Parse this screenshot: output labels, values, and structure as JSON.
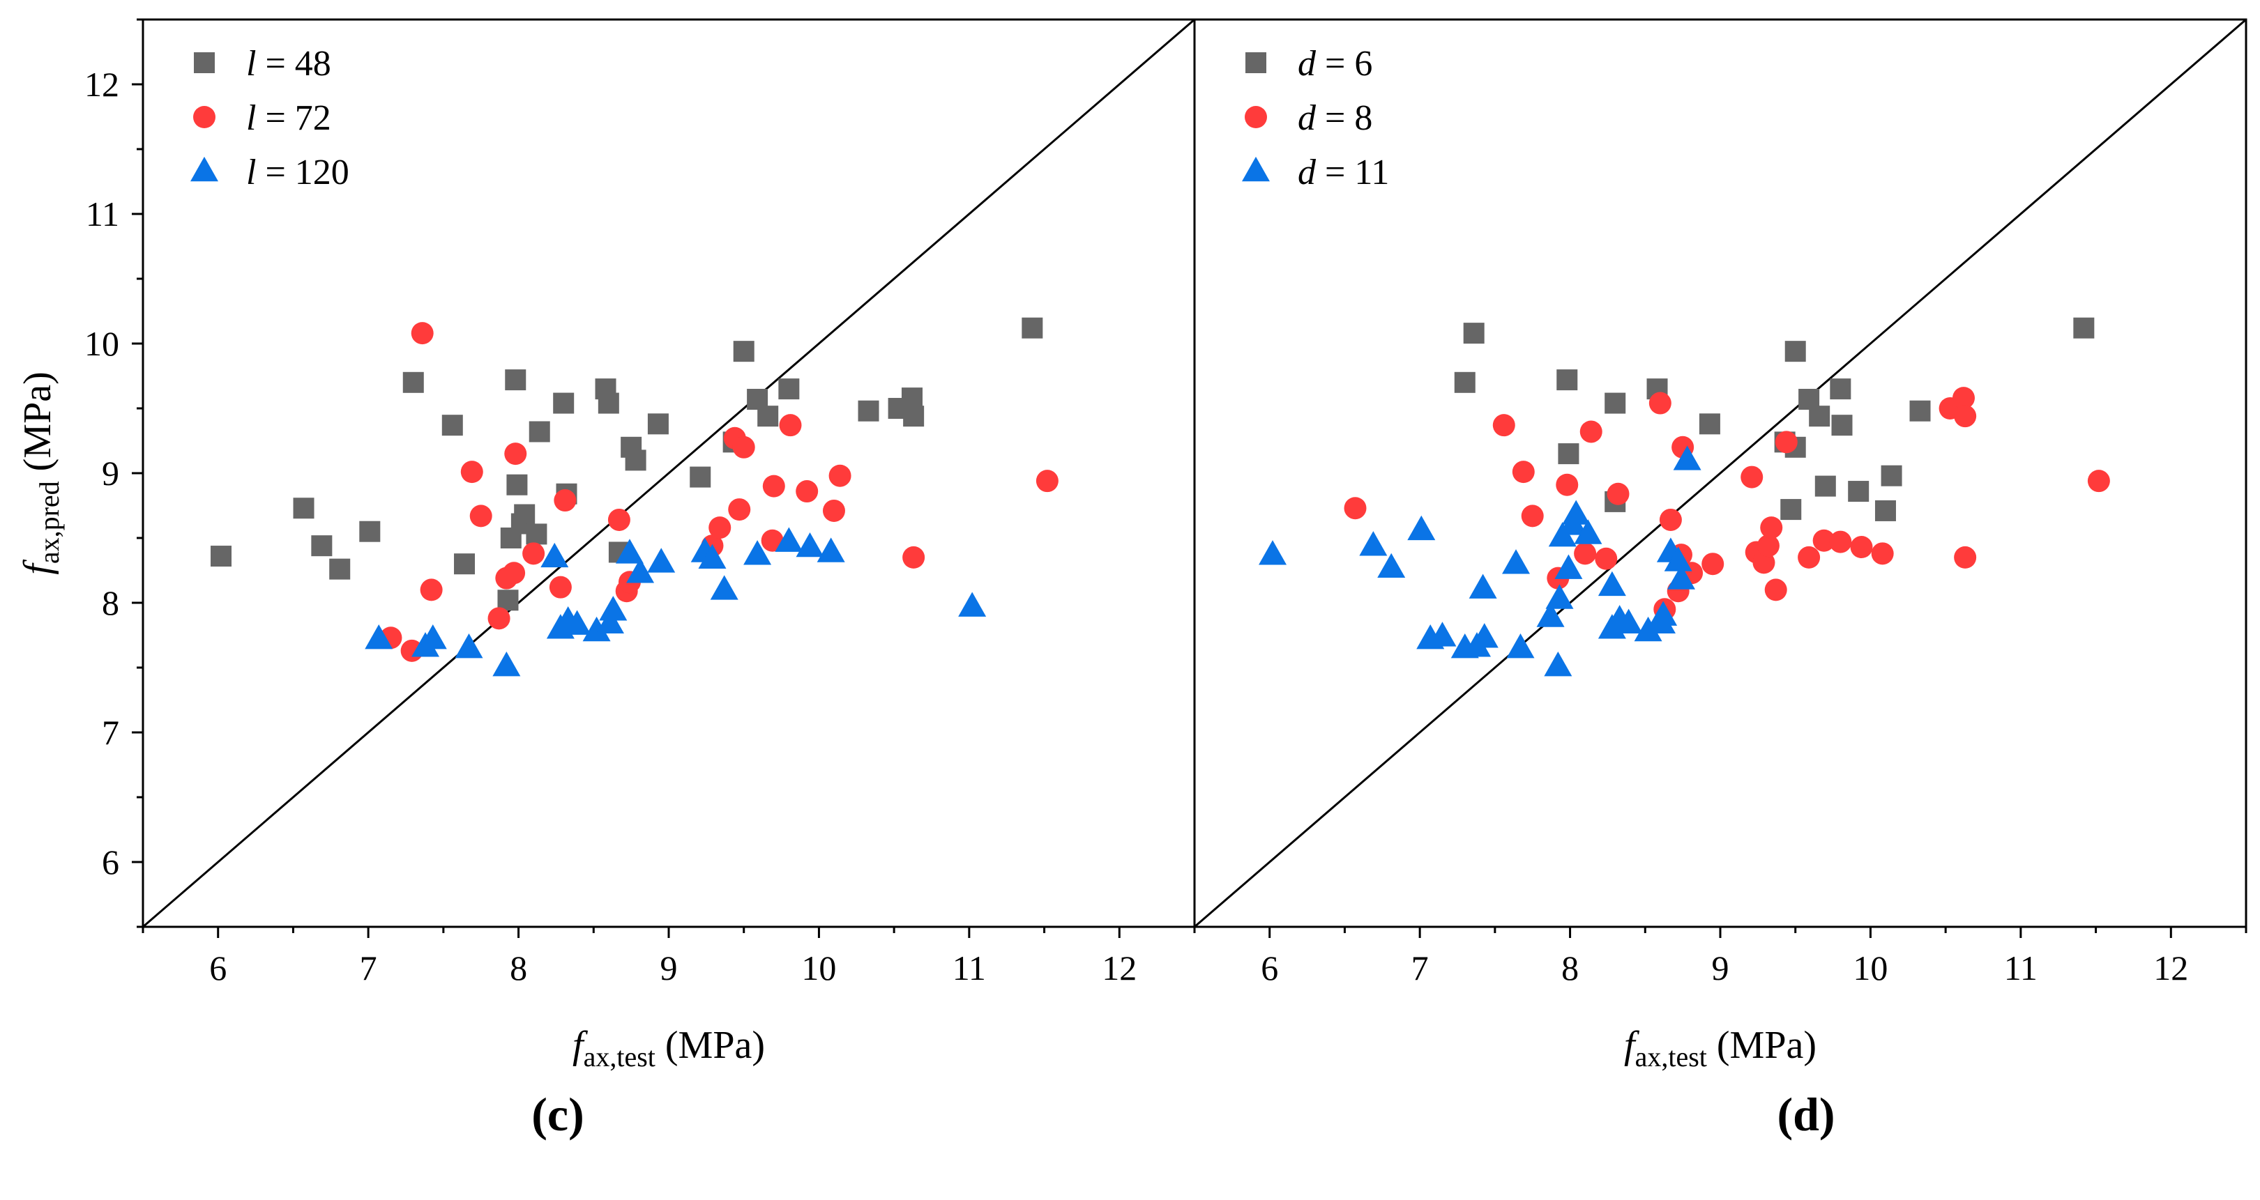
{
  "colors": {
    "series_48": "#666666",
    "series_72": "#ff3b3b",
    "series_120": "#0a74e6",
    "axis": "#000000"
  },
  "chart_data": [
    {
      "type": "scatter",
      "panel_label": "(c)",
      "title": "",
      "xlabel": {
        "main": "f",
        "sub": "ax,test",
        "unit": " (MPa)"
      },
      "ylabel": {
        "main": "f",
        "sub": "ax,pred",
        "unit": " (MPa)"
      },
      "xlim": [
        5.5,
        12.5
      ],
      "ylim": [
        5.5,
        12.5
      ],
      "xticks": [
        "6",
        "7",
        "8",
        "9",
        "10",
        "11",
        "12"
      ],
      "yticks": [
        "6",
        "7",
        "8",
        "9",
        "10",
        "11",
        "12"
      ],
      "grid": false,
      "legend_position": "top-left",
      "reference_line": {
        "from": [
          5.5,
          5.5
        ],
        "to": [
          12.5,
          12.5
        ]
      },
      "series": [
        {
          "name_var": "l",
          "name_value": "48",
          "marker": "square",
          "color": "#666666",
          "points": [
            [
              6.02,
              8.36
            ],
            [
              6.57,
              8.73
            ],
            [
              6.69,
              8.44
            ],
            [
              6.81,
              8.26
            ],
            [
              7.01,
              8.55
            ],
            [
              7.3,
              9.7
            ],
            [
              7.56,
              9.37
            ],
            [
              7.64,
              8.3
            ],
            [
              7.93,
              8.02
            ],
            [
              7.95,
              8.5
            ],
            [
              7.98,
              9.72
            ],
            [
              7.99,
              8.91
            ],
            [
              8.02,
              8.61
            ],
            [
              8.04,
              8.68
            ],
            [
              8.12,
              8.53
            ],
            [
              8.14,
              9.32
            ],
            [
              8.3,
              9.54
            ],
            [
              8.32,
              8.84
            ],
            [
              8.58,
              9.65
            ],
            [
              8.6,
              9.54
            ],
            [
              8.67,
              8.39
            ],
            [
              8.75,
              9.2
            ],
            [
              8.78,
              9.1
            ],
            [
              8.93,
              9.38
            ],
            [
              9.21,
              8.97
            ],
            [
              9.43,
              9.24
            ],
            [
              9.5,
              9.94
            ],
            [
              9.59,
              9.57
            ],
            [
              9.66,
              9.44
            ],
            [
              9.8,
              9.65
            ],
            [
              10.33,
              9.48
            ],
            [
              10.53,
              9.5
            ],
            [
              10.62,
              9.58
            ],
            [
              10.63,
              9.44
            ],
            [
              11.42,
              10.12
            ]
          ]
        },
        {
          "name_var": "l",
          "name_value": "72",
          "marker": "circle",
          "color": "#ff3b3b",
          "points": [
            [
              7.15,
              7.73
            ],
            [
              7.29,
              7.63
            ],
            [
              7.36,
              10.08
            ],
            [
              7.42,
              8.1
            ],
            [
              7.69,
              9.01
            ],
            [
              7.75,
              8.67
            ],
            [
              7.87,
              7.88
            ],
            [
              7.92,
              8.19
            ],
            [
              7.97,
              8.23
            ],
            [
              7.98,
              9.15
            ],
            [
              8.1,
              8.38
            ],
            [
              8.28,
              8.12
            ],
            [
              8.31,
              8.79
            ],
            [
              8.67,
              8.64
            ],
            [
              8.72,
              8.09
            ],
            [
              8.74,
              8.16
            ],
            [
              9.29,
              8.44
            ],
            [
              9.34,
              8.58
            ],
            [
              9.44,
              9.27
            ],
            [
              9.47,
              8.72
            ],
            [
              9.5,
              9.2
            ],
            [
              9.69,
              8.48
            ],
            [
              9.7,
              8.9
            ],
            [
              9.81,
              9.37
            ],
            [
              9.92,
              8.86
            ],
            [
              10.1,
              8.71
            ],
            [
              10.14,
              8.98
            ],
            [
              10.63,
              8.35
            ],
            [
              11.52,
              8.94
            ]
          ]
        },
        {
          "name_var": "l",
          "name_value": "120",
          "marker": "triangle",
          "color": "#0a74e6",
          "points": [
            [
              7.07,
              7.72
            ],
            [
              7.38,
              7.66
            ],
            [
              7.43,
              7.72
            ],
            [
              7.67,
              7.65
            ],
            [
              7.92,
              7.51
            ],
            [
              8.24,
              8.35
            ],
            [
              8.28,
              7.8
            ],
            [
              8.33,
              7.86
            ],
            [
              8.39,
              7.83
            ],
            [
              8.52,
              7.78
            ],
            [
              8.61,
              7.84
            ],
            [
              8.63,
              7.94
            ],
            [
              8.74,
              8.38
            ],
            [
              8.81,
              8.23
            ],
            [
              8.95,
              8.31
            ],
            [
              9.24,
              8.39
            ],
            [
              9.29,
              8.34
            ],
            [
              9.37,
              8.1
            ],
            [
              9.59,
              8.37
            ],
            [
              9.8,
              8.47
            ],
            [
              9.94,
              8.43
            ],
            [
              10.08,
              8.39
            ],
            [
              11.02,
              7.97
            ]
          ]
        }
      ]
    },
    {
      "type": "scatter",
      "panel_label": "(d)",
      "title": "",
      "xlabel": {
        "main": "f",
        "sub": "ax,test",
        "unit": " (MPa)"
      },
      "ylabel": {
        "main": "",
        "sub": "",
        "unit": ""
      },
      "xlim": [
        5.5,
        12.5
      ],
      "ylim": [
        5.5,
        12.5
      ],
      "xticks": [
        "6",
        "7",
        "8",
        "9",
        "10",
        "11",
        "12"
      ],
      "yticks": [],
      "grid": false,
      "legend_position": "top-left",
      "reference_line": {
        "from": [
          5.5,
          5.5
        ],
        "to": [
          12.5,
          12.5
        ]
      },
      "series": [
        {
          "name_var": "d",
          "name_value": "6",
          "marker": "square",
          "color": "#666666",
          "points": [
            [
              7.3,
              9.7
            ],
            [
              7.36,
              10.08
            ],
            [
              7.98,
              9.72
            ],
            [
              7.99,
              9.15
            ],
            [
              8.3,
              9.54
            ],
            [
              8.3,
              8.78
            ],
            [
              8.58,
              9.65
            ],
            [
              8.93,
              9.38
            ],
            [
              9.43,
              9.24
            ],
            [
              9.47,
              8.72
            ],
            [
              9.5,
              9.94
            ],
            [
              9.5,
              9.2
            ],
            [
              9.59,
              9.57
            ],
            [
              9.66,
              9.44
            ],
            [
              9.7,
              8.9
            ],
            [
              9.8,
              9.65
            ],
            [
              9.81,
              9.37
            ],
            [
              9.92,
              8.86
            ],
            [
              10.1,
              8.71
            ],
            [
              10.14,
              8.98
            ],
            [
              10.33,
              9.48
            ],
            [
              11.42,
              10.12
            ]
          ]
        },
        {
          "name_var": "d",
          "name_value": "8",
          "marker": "circle",
          "color": "#ff3b3b",
          "points": [
            [
              6.57,
              8.73
            ],
            [
              7.56,
              9.37
            ],
            [
              7.69,
              9.01
            ],
            [
              7.75,
              8.67
            ],
            [
              7.92,
              8.19
            ],
            [
              7.98,
              8.91
            ],
            [
              8.1,
              8.38
            ],
            [
              8.14,
              9.32
            ],
            [
              8.24,
              8.34
            ],
            [
              8.32,
              8.84
            ],
            [
              8.6,
              9.54
            ],
            [
              8.63,
              7.95
            ],
            [
              8.67,
              8.64
            ],
            [
              8.72,
              8.09
            ],
            [
              8.74,
              8.37
            ],
            [
              8.75,
              9.2
            ],
            [
              8.81,
              8.23
            ],
            [
              8.95,
              8.3
            ],
            [
              9.21,
              8.97
            ],
            [
              9.24,
              8.39
            ],
            [
              9.29,
              8.31
            ],
            [
              9.32,
              8.44
            ],
            [
              9.34,
              8.58
            ],
            [
              9.37,
              8.1
            ],
            [
              9.44,
              9.24
            ],
            [
              9.59,
              8.35
            ],
            [
              9.69,
              8.48
            ],
            [
              9.8,
              8.47
            ],
            [
              9.94,
              8.43
            ],
            [
              10.08,
              8.38
            ],
            [
              10.53,
              9.5
            ],
            [
              10.62,
              9.58
            ],
            [
              10.63,
              9.44
            ],
            [
              10.63,
              8.35
            ],
            [
              11.52,
              8.94
            ]
          ]
        },
        {
          "name_var": "d",
          "name_value": "11",
          "marker": "triangle",
          "color": "#0a74e6",
          "points": [
            [
              6.02,
              8.37
            ],
            [
              6.69,
              8.44
            ],
            [
              6.81,
              8.27
            ],
            [
              7.01,
              8.56
            ],
            [
              7.07,
              7.72
            ],
            [
              7.15,
              7.74
            ],
            [
              7.3,
              7.65
            ],
            [
              7.38,
              7.66
            ],
            [
              7.42,
              8.11
            ],
            [
              7.43,
              7.73
            ],
            [
              7.64,
              8.3
            ],
            [
              7.67,
              7.65
            ],
            [
              7.87,
              7.89
            ],
            [
              7.92,
              7.51
            ],
            [
              7.93,
              8.03
            ],
            [
              7.95,
              8.51
            ],
            [
              7.99,
              8.26
            ],
            [
              8.02,
              8.6
            ],
            [
              8.04,
              8.68
            ],
            [
              8.12,
              8.53
            ],
            [
              8.28,
              8.13
            ],
            [
              8.28,
              7.8
            ],
            [
              8.33,
              7.87
            ],
            [
              8.39,
              7.84
            ],
            [
              8.52,
              7.78
            ],
            [
              8.61,
              7.84
            ],
            [
              8.62,
              7.9
            ],
            [
              8.67,
              8.39
            ],
            [
              8.72,
              8.32
            ],
            [
              8.74,
              8.18
            ],
            [
              8.78,
              9.1
            ]
          ]
        }
      ]
    }
  ]
}
